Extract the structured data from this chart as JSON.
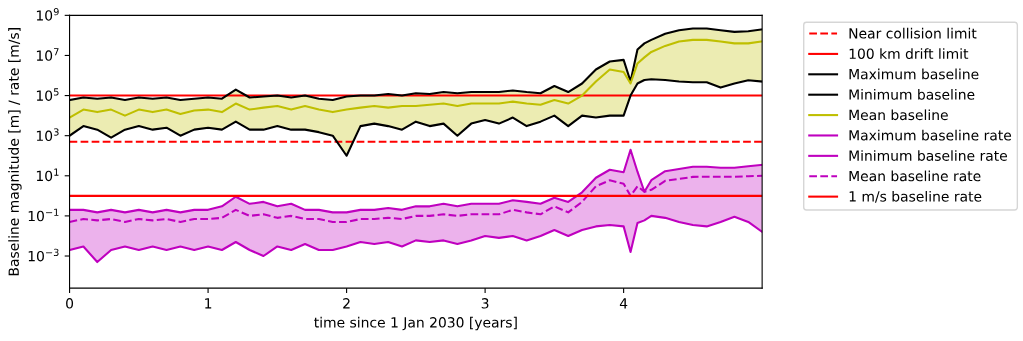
{
  "chart_data": {
    "type": "line",
    "xlabel": "time since 1 Jan 2030 [years]",
    "ylabel": "Baseline magnitude [m] / rate [m/s]",
    "log": "y",
    "ylim": [
      2.5e-05,
      1000000000.0
    ],
    "yticks": [
      {
        "value": 0.001,
        "label": "10$^{−3}$"
      },
      {
        "value": 0.1,
        "label": "10$^{−1}$"
      },
      {
        "value": 10,
        "label": "10$^{1}$"
      },
      {
        "value": 1000,
        "label": "10$^{3}$"
      },
      {
        "value": 100000,
        "label": "10$^{5}$"
      },
      {
        "value": 10000000,
        "label": "10$^{7}$"
      },
      {
        "value": 1000000000,
        "label": "10$^{9}$"
      }
    ],
    "xlim": [
      0,
      5
    ],
    "xticks": [
      0,
      1,
      2,
      3,
      4
    ],
    "grid": false,
    "legend": "right",
    "x": [
      0,
      0.1,
      0.2,
      0.3,
      0.4,
      0.5,
      0.6,
      0.7,
      0.8,
      0.9,
      1.0,
      1.1,
      1.2,
      1.3,
      1.4,
      1.5,
      1.6,
      1.7,
      1.8,
      1.9,
      2.0,
      2.1,
      2.2,
      2.3,
      2.4,
      2.5,
      2.6,
      2.7,
      2.8,
      2.9,
      3.0,
      3.1,
      3.2,
      3.3,
      3.4,
      3.5,
      3.6,
      3.7,
      3.8,
      3.9,
      4.0,
      4.05,
      4.1,
      4.15,
      4.2,
      4.3,
      4.4,
      4.5,
      4.6,
      4.7,
      4.8,
      4.9,
      5.0
    ],
    "ref_lines": [
      {
        "axis": "y",
        "value": 500,
        "label": "Near collision limit",
        "color": "#ff0000",
        "line_style": "dashed"
      },
      {
        "axis": "y",
        "value": 100000,
        "label": "100 km drift limit",
        "color": "#ff0000",
        "line_style": "solid"
      }
    ],
    "series": [
      {
        "name": "Maximum baseline",
        "color": "#000000",
        "line_style": "solid",
        "values": [
          60000.0,
          80000.0,
          70000.0,
          80000.0,
          60000.0,
          80000.0,
          70000.0,
          80000.0,
          60000.0,
          70000.0,
          80000.0,
          70000.0,
          200000.0,
          80000.0,
          90000.0,
          100000.0,
          80000.0,
          100000.0,
          70000.0,
          60000.0,
          90000.0,
          100000.0,
          100000.0,
          120000.0,
          100000.0,
          130000.0,
          120000.0,
          150000.0,
          130000.0,
          150000.0,
          150000.0,
          150000.0,
          180000.0,
          150000.0,
          130000.0,
          300000.0,
          150000.0,
          400000.0,
          2000000.0,
          5000000.0,
          6000000.0,
          500000.0,
          20000000.0,
          40000000.0,
          60000000.0,
          120000000.0,
          180000000.0,
          220000000.0,
          220000000.0,
          180000000.0,
          150000000.0,
          160000000.0,
          200000000.0
        ]
      },
      {
        "name": "Minimum baseline",
        "color": "#000000",
        "line_style": "solid",
        "values": [
          1000.0,
          3000.0,
          2000.0,
          800.0,
          2000.0,
          3000.0,
          2000.0,
          2500.0,
          1000.0,
          2000.0,
          2500.0,
          2000.0,
          5000.0,
          2000.0,
          2000.0,
          3000.0,
          2000.0,
          2000.0,
          1500.0,
          1000.0,
          100.0,
          3000.0,
          4000.0,
          3000.0,
          2000.0,
          5000.0,
          3000.0,
          4000.0,
          1000.0,
          4000.0,
          6000.0,
          4000.0,
          8000.0,
          3000.0,
          5000.0,
          10000.0,
          3000.0,
          10000.0,
          8000.0,
          10000.0,
          10000.0,
          100000.0,
          400000.0,
          600000.0,
          650000.0,
          600000.0,
          500000.0,
          460000.0,
          460000.0,
          250000.0,
          400000.0,
          580000.0,
          500000.0
        ]
      },
      {
        "name": "Mean baseline",
        "color": "#bfbf00",
        "line_style": "solid",
        "values": [
          8000.0,
          20000.0,
          15000.0,
          20000.0,
          10000.0,
          20000.0,
          15000.0,
          20000.0,
          12000.0,
          18000.0,
          20000.0,
          15000.0,
          40000.0,
          20000.0,
          25000.0,
          30000.0,
          20000.0,
          30000.0,
          20000.0,
          15000.0,
          20000.0,
          25000.0,
          30000.0,
          25000.0,
          30000.0,
          30000.0,
          35000.0,
          40000.0,
          30000.0,
          40000.0,
          40000.0,
          40000.0,
          50000.0,
          40000.0,
          35000.0,
          60000.0,
          40000.0,
          100000.0,
          500000.0,
          2000000.0,
          1500000.0,
          400000.0,
          4000000.0,
          8000000.0,
          15000000.0,
          30000000.0,
          50000000.0,
          60000000.0,
          60000000.0,
          50000000.0,
          40000000.0,
          40000000.0,
          50000000.0
        ],
        "lower": [
          1000.0,
          3000.0,
          2000.0,
          800.0,
          2000.0,
          3000.0,
          2000.0,
          2500.0,
          1000.0,
          2000.0,
          2500.0,
          2000.0,
          5000.0,
          2000.0,
          2000.0,
          3000.0,
          2000.0,
          2000.0,
          1500.0,
          1000.0,
          100.0,
          3000.0,
          4000.0,
          3000.0,
          2000.0,
          5000.0,
          3000.0,
          4000.0,
          1000.0,
          4000.0,
          6000.0,
          4000.0,
          8000.0,
          3000.0,
          5000.0,
          10000.0,
          3000.0,
          10000.0,
          8000.0,
          10000.0,
          10000.0,
          100000.0,
          400000.0,
          600000.0,
          650000.0,
          600000.0,
          500000.0,
          460000.0,
          460000.0,
          250000.0,
          400000.0,
          580000.0,
          500000.0
        ],
        "upper": [
          60000.0,
          80000.0,
          70000.0,
          80000.0,
          60000.0,
          80000.0,
          70000.0,
          80000.0,
          60000.0,
          70000.0,
          80000.0,
          70000.0,
          200000.0,
          80000.0,
          90000.0,
          100000.0,
          80000.0,
          100000.0,
          70000.0,
          60000.0,
          90000.0,
          100000.0,
          100000.0,
          120000.0,
          100000.0,
          130000.0,
          120000.0,
          150000.0,
          130000.0,
          150000.0,
          150000.0,
          150000.0,
          180000.0,
          150000.0,
          130000.0,
          300000.0,
          150000.0,
          400000.0,
          2000000.0,
          5000000.0,
          6000000.0,
          500000.0,
          20000000.0,
          40000000.0,
          60000000.0,
          120000000.0,
          180000000.0,
          220000000.0,
          220000000.0,
          180000000.0,
          150000000.0,
          160000000.0,
          200000000.0
        ]
      },
      {
        "name": "Maximum baseline rate",
        "color": "#bf00bf",
        "line_style": "solid",
        "values": [
          0.2,
          0.2,
          0.15,
          0.2,
          0.15,
          0.2,
          0.15,
          0.2,
          0.15,
          0.2,
          0.2,
          0.3,
          0.9,
          0.4,
          0.5,
          0.3,
          0.4,
          0.2,
          0.2,
          0.15,
          0.15,
          0.2,
          0.2,
          0.25,
          0.2,
          0.3,
          0.3,
          0.4,
          0.3,
          0.4,
          0.4,
          0.4,
          0.6,
          0.5,
          0.4,
          0.8,
          0.5,
          1.5,
          8,
          20,
          15,
          200,
          16,
          1.6,
          6,
          17,
          22,
          28,
          28,
          25,
          25,
          30,
          35
        ]
      },
      {
        "name": "Minimum baseline rate",
        "color": "#bf00bf",
        "line_style": "solid",
        "values": [
          0.002,
          0.003,
          0.0005,
          0.002,
          0.003,
          0.002,
          0.003,
          0.002,
          0.003,
          0.002,
          0.003,
          0.002,
          0.005,
          0.002,
          0.001,
          0.003,
          0.002,
          0.004,
          0.002,
          0.002,
          0.003,
          0.005,
          0.004,
          0.005,
          0.003,
          0.006,
          0.005,
          0.006,
          0.004,
          0.006,
          0.01,
          0.008,
          0.01,
          0.006,
          0.01,
          0.02,
          0.01,
          0.02,
          0.03,
          0.035,
          0.03,
          0.0016,
          0.044,
          0.06,
          0.1,
          0.08,
          0.05,
          0.035,
          0.03,
          0.05,
          0.09,
          0.05,
          0.016
        ]
      },
      {
        "name": "Mean baseline rate",
        "color": "#bf00bf",
        "line_style": "dashed",
        "values": [
          0.05,
          0.07,
          0.06,
          0.07,
          0.05,
          0.07,
          0.06,
          0.07,
          0.05,
          0.07,
          0.07,
          0.08,
          0.2,
          0.1,
          0.12,
          0.08,
          0.1,
          0.07,
          0.07,
          0.05,
          0.05,
          0.07,
          0.07,
          0.08,
          0.07,
          0.1,
          0.1,
          0.12,
          0.1,
          0.12,
          0.12,
          0.12,
          0.2,
          0.15,
          0.12,
          0.3,
          0.15,
          0.5,
          3,
          6,
          4,
          1,
          3,
          1.6,
          2,
          5.6,
          7,
          8.8,
          9,
          9,
          9,
          9.5,
          10
        ],
        "lower": [
          0.002,
          0.003,
          0.0005,
          0.002,
          0.003,
          0.002,
          0.003,
          0.002,
          0.003,
          0.002,
          0.003,
          0.002,
          0.005,
          0.002,
          0.001,
          0.003,
          0.002,
          0.004,
          0.002,
          0.002,
          0.003,
          0.005,
          0.004,
          0.005,
          0.003,
          0.006,
          0.005,
          0.006,
          0.004,
          0.006,
          0.01,
          0.008,
          0.01,
          0.006,
          0.01,
          0.02,
          0.01,
          0.02,
          0.03,
          0.035,
          0.03,
          0.0016,
          0.044,
          0.06,
          0.1,
          0.08,
          0.05,
          0.035,
          0.03,
          0.05,
          0.09,
          0.05,
          0.016
        ],
        "upper": [
          0.2,
          0.2,
          0.15,
          0.2,
          0.15,
          0.2,
          0.15,
          0.2,
          0.15,
          0.2,
          0.2,
          0.3,
          0.9,
          0.4,
          0.5,
          0.3,
          0.4,
          0.2,
          0.2,
          0.15,
          0.15,
          0.2,
          0.2,
          0.25,
          0.2,
          0.3,
          0.3,
          0.4,
          0.3,
          0.4,
          0.4,
          0.4,
          0.6,
          0.5,
          0.4,
          0.8,
          0.5,
          1.5,
          8,
          20,
          15,
          200,
          16,
          1.6,
          6,
          17,
          22,
          28,
          28,
          25,
          25,
          30,
          35
        ]
      },
      {
        "name": "1 m/s baseline rate",
        "color": "#ff0000",
        "line_style": "solid",
        "x": [
          0,
          5
        ],
        "values": [
          1,
          1
        ]
      }
    ]
  }
}
